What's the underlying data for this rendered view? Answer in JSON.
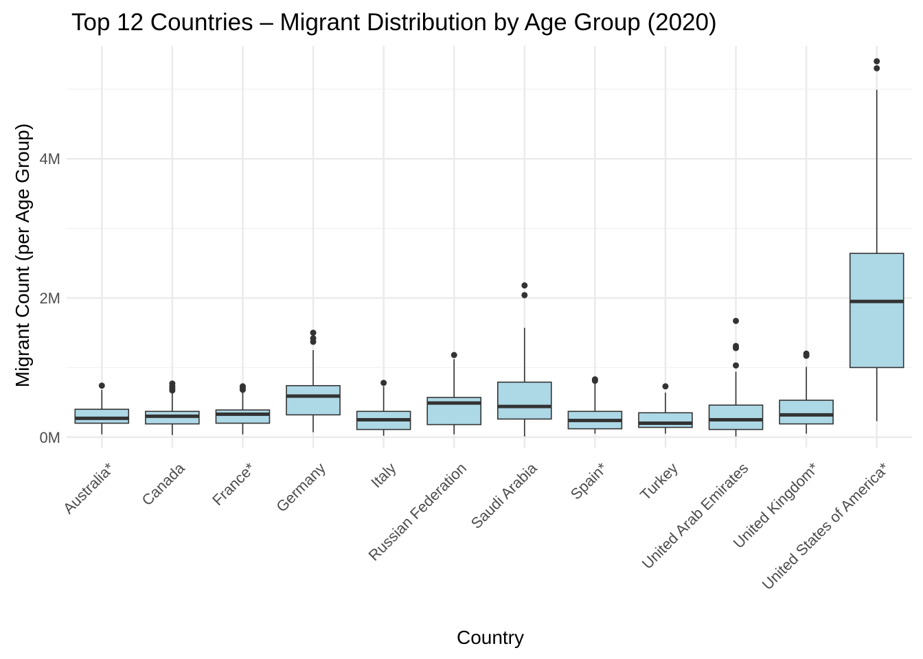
{
  "chart_data": {
    "type": "boxplot",
    "title": "Top 12 Countries – Migrant Distribution by Age Group (2020)",
    "xlabel": "Country",
    "ylabel": "Migrant Count (per Age Group)",
    "ylim": [
      -150000,
      5620000
    ],
    "y_ticks": [
      0,
      2000000,
      4000000
    ],
    "y_tick_labels": [
      "0M",
      "2M",
      "4M"
    ],
    "grid": true,
    "series": [
      {
        "category": "Australia*",
        "whisker_low": 40000,
        "q1": 200000,
        "median": 270000,
        "q3": 400000,
        "whisker_high": 680000,
        "outliers": [
          740000
        ]
      },
      {
        "category": "Canada",
        "whisker_low": 30000,
        "q1": 190000,
        "median": 300000,
        "q3": 370000,
        "whisker_high": 630000,
        "outliers": [
          670000,
          700000,
          730000,
          770000
        ]
      },
      {
        "category": "France*",
        "whisker_low": 40000,
        "q1": 200000,
        "median": 330000,
        "q3": 390000,
        "whisker_high": 640000,
        "outliers": [
          680000,
          710000,
          730000
        ]
      },
      {
        "category": "Germany",
        "whisker_low": 70000,
        "q1": 320000,
        "median": 590000,
        "q3": 740000,
        "whisker_high": 1250000,
        "outliers": [
          1370000,
          1420000,
          1500000
        ]
      },
      {
        "category": "Italy",
        "whisker_low": 20000,
        "q1": 110000,
        "median": 250000,
        "q3": 370000,
        "whisker_high": 730000,
        "outliers": [
          780000
        ]
      },
      {
        "category": "Russian Federation",
        "whisker_low": 40000,
        "q1": 180000,
        "median": 490000,
        "q3": 570000,
        "whisker_high": 1120000,
        "outliers": [
          1180000
        ]
      },
      {
        "category": "Saudi Arabia",
        "whisker_low": 10000,
        "q1": 260000,
        "median": 440000,
        "q3": 790000,
        "whisker_high": 1570000,
        "outliers": [
          2040000,
          2180000
        ]
      },
      {
        "category": "Spain*",
        "whisker_low": 50000,
        "q1": 120000,
        "median": 240000,
        "q3": 370000,
        "whisker_high": 780000,
        "outliers": [
          810000,
          830000
        ]
      },
      {
        "category": "Turkey",
        "whisker_low": 50000,
        "q1": 140000,
        "median": 200000,
        "q3": 350000,
        "whisker_high": 640000,
        "outliers": [
          730000
        ]
      },
      {
        "category": "United Arab Emirates",
        "whisker_low": 10000,
        "q1": 110000,
        "median": 250000,
        "q3": 460000,
        "whisker_high": 940000,
        "outliers": [
          1030000,
          1280000,
          1310000,
          1670000
        ]
      },
      {
        "category": "United Kingdom*",
        "whisker_low": 50000,
        "q1": 190000,
        "median": 320000,
        "q3": 530000,
        "whisker_high": 1010000,
        "outliers": [
          1170000,
          1200000
        ]
      },
      {
        "category": "United States of America*",
        "whisker_low": 230000,
        "q1": 1000000,
        "median": 1950000,
        "q3": 2640000,
        "whisker_high": 4990000,
        "outliers": [
          5300000,
          5400000
        ]
      }
    ],
    "colors": {
      "box_fill": "#add8e6",
      "box_line": "#333333",
      "grid": "#ebebeb"
    }
  }
}
